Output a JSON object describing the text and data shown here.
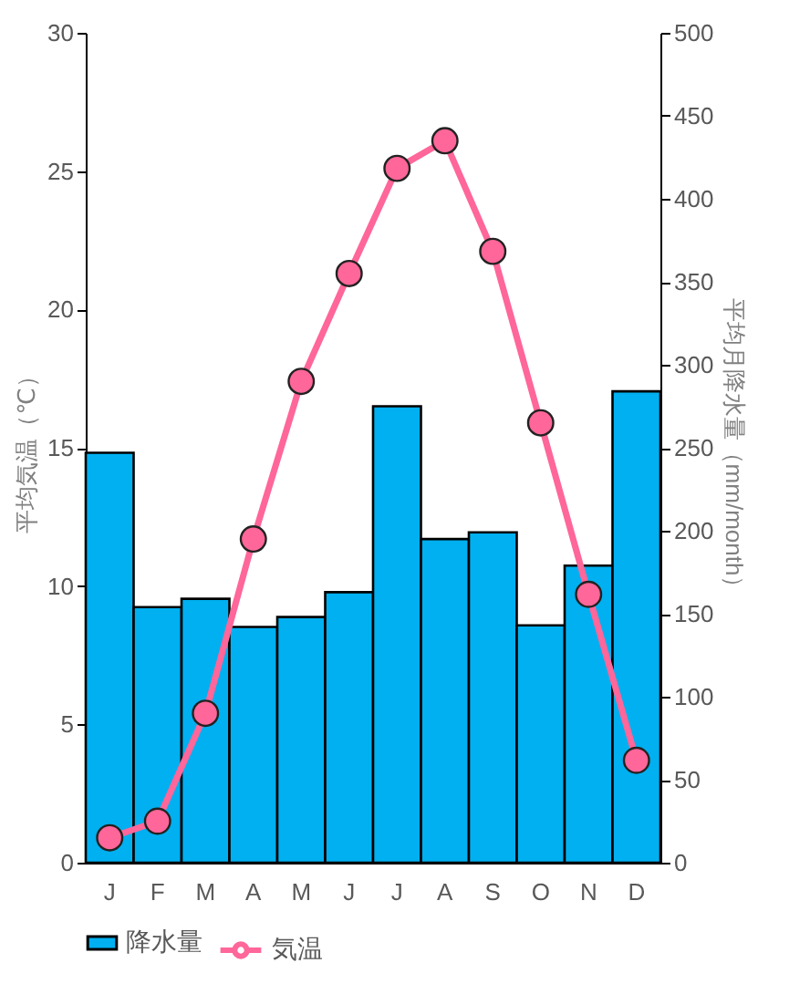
{
  "chart_data": {
    "type": "bar",
    "categories": [
      "J",
      "F",
      "M",
      "A",
      "M",
      "J",
      "J",
      "A",
      "S",
      "O",
      "N",
      "D"
    ],
    "series": [
      {
        "name": "降水量",
        "axis": "y2",
        "color": "#00b0f0",
        "values": [
          247,
          154,
          159,
          142,
          148,
          163,
          275,
          195,
          199,
          143,
          179,
          284
        ]
      },
      {
        "name": "気温",
        "type": "line",
        "color": "#ff6699",
        "values": [
          0.9,
          1.5,
          5.4,
          11.7,
          17.4,
          21.3,
          25.1,
          26.1,
          22.1,
          15.9,
          9.7,
          3.7
        ]
      }
    ],
    "ylabel": "平均気温（℃）",
    "y2label": "平均月降水量（mm/month）",
    "ylim": [
      0,
      30
    ],
    "yticks": [
      0,
      5,
      10,
      15,
      20,
      25,
      30
    ],
    "y2lim": [
      0,
      500
    ],
    "y2ticks": [
      0,
      50,
      100,
      150,
      200,
      250,
      300,
      350,
      400,
      450,
      500
    ],
    "legend": "bottom",
    "marker": "circle",
    "line_style": "solid",
    "grid": false
  }
}
